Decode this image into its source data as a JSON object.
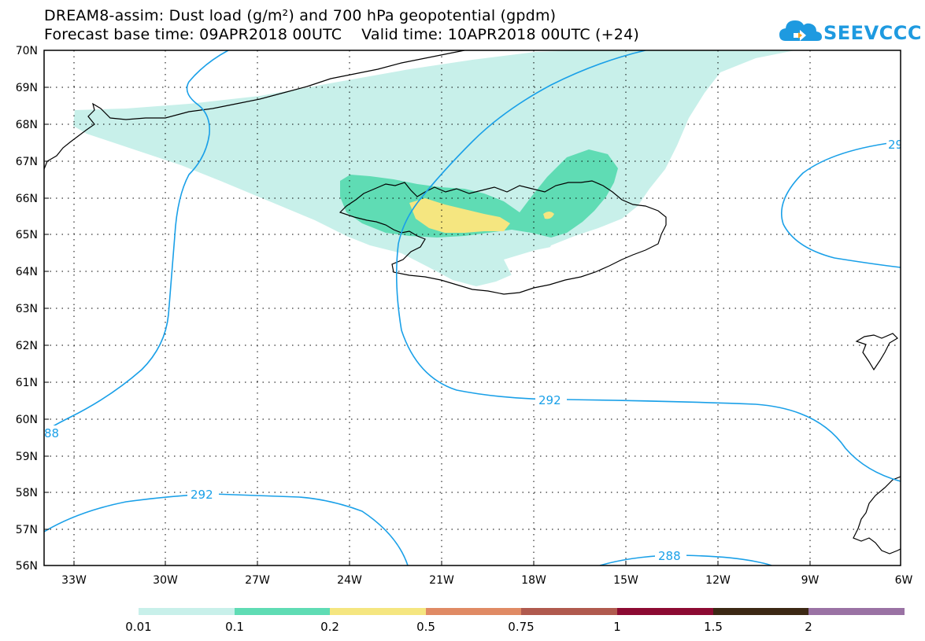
{
  "title": {
    "line1": "DREAM8-assim: Dust load (g/m²) and 700 hPa geopotential (gpdm)",
    "line2": "Forecast base time: 09APR2018 00UTC    Valid time: 10APR2018 00UTC (+24)"
  },
  "logo": {
    "text": "SEEVCCC",
    "icon": "cloud-icon",
    "color": "#1e9ae0"
  },
  "map": {
    "lat_labels": [
      "70N",
      "69N",
      "68N",
      "67N",
      "66N",
      "65N",
      "64N",
      "63N",
      "62N",
      "61N",
      "60N",
      "59N",
      "58N",
      "57N",
      "56N"
    ],
    "lon_labels": [
      "33W",
      "30W",
      "27W",
      "24W",
      "21W",
      "18W",
      "15W",
      "12W",
      "9W",
      "6W"
    ],
    "contour_labels": [
      "292",
      "292",
      "288",
      "88",
      "29"
    ],
    "contour_color": "#1aa0e8"
  },
  "colorbar": {
    "labels": [
      "0.01",
      "0.1",
      "0.2",
      "0.5",
      "0.75",
      "1",
      "1.5",
      "2"
    ],
    "colors": [
      "#c8f0ea",
      "#5fdcb4",
      "#f5e680",
      "#e08a64",
      "#b05a4e",
      "#8c0a32",
      "#3c2814",
      "#9a72a4"
    ]
  }
}
